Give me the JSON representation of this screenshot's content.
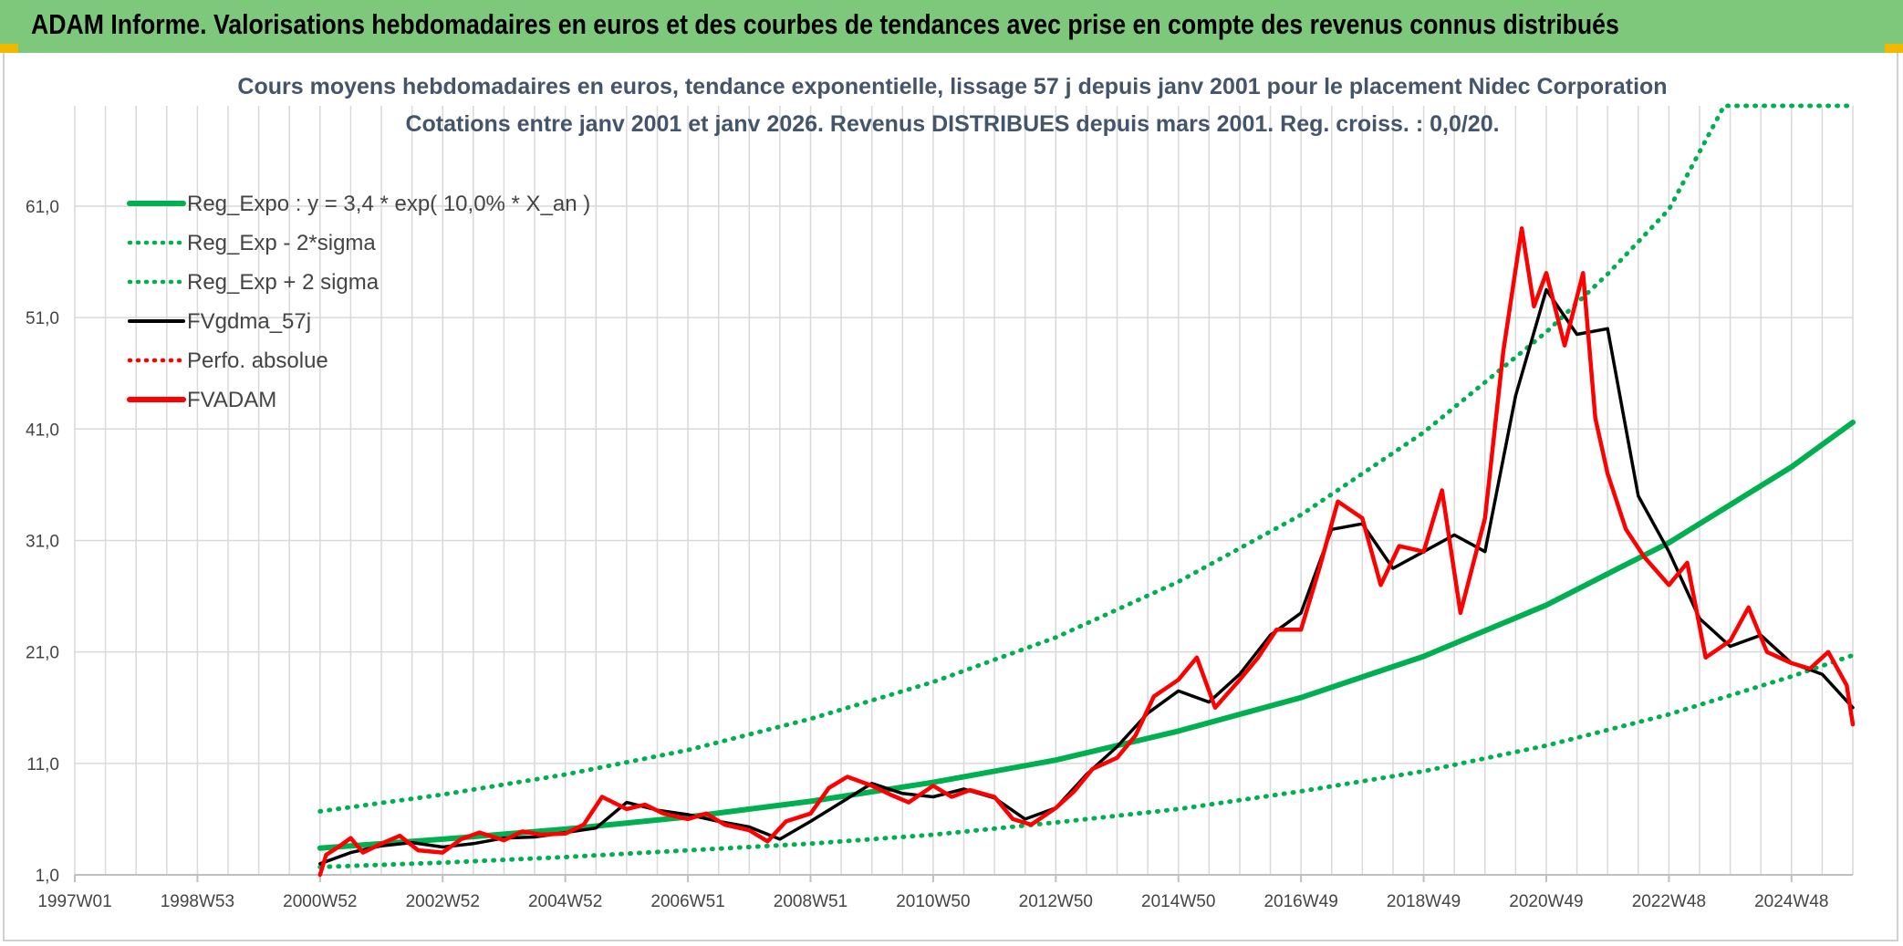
{
  "banner": {
    "title": "ADAM Informe. Valorisations hebdomadaires en euros et des courbes de tendances avec prise en compte des revenus connus distribués",
    "background": "#7dc87a",
    "accent": "#f2b800"
  },
  "chart_data": {
    "type": "line",
    "title_line1": "Cours moyens hebdomadaires en euros, tendance exponentielle, lissage 57 j depuis janv 2001 pour le placement Nidec Corporation",
    "title_line2": "Cotations entre janv 2001 et janv 2026. Revenus DISTRIBUES depuis mars 2001. Reg. croiss. : 0,0/20.",
    "x_tick_labels": [
      "1997W01",
      "1998W53",
      "2000W52",
      "2002W52",
      "2004W52",
      "2006W51",
      "2008W51",
      "2010W50",
      "2012W50",
      "2014W50",
      "2016W49",
      "2018W49",
      "2020W49",
      "2022W48",
      "2024W48"
    ],
    "x_tick_years": [
      1997.0,
      1999.0,
      2001.0,
      2003.0,
      2005.0,
      2007.0,
      2009.0,
      2011.0,
      2013.0,
      2015.0,
      2017.0,
      2019.0,
      2021.0,
      2023.0,
      2025.0
    ],
    "x_range": [
      1997.0,
      2026.0
    ],
    "y_tick_labels": [
      "1,0",
      "11,0",
      "21,0",
      "31,0",
      "41,0",
      "51,0",
      "61,0"
    ],
    "y_ticks": [
      1,
      11,
      21,
      31,
      41,
      51,
      61
    ],
    "ylim": [
      1,
      70
    ],
    "grid": true,
    "legend_position": "top-left",
    "legend": [
      {
        "label": "Reg_Expo : y = 3,4 * exp( 10,0% *  X_an )",
        "color": "#00b050",
        "style": "solid-thick"
      },
      {
        "label": "Reg_Exp - 2*sigma",
        "color": "#00b050",
        "style": "dotted"
      },
      {
        "label": "Reg_Exp + 2 sigma",
        "color": "#00b050",
        "style": "dotted"
      },
      {
        "label": "FVgdma_57j",
        "color": "#000000",
        "style": "solid"
      },
      {
        "label": "Perfo. absolue",
        "color": "#ff0000",
        "style": "dotted"
      },
      {
        "label": "FVADAM",
        "color": "#ff0000",
        "style": "solid-thick"
      }
    ],
    "series": [
      {
        "name": "Reg_Expo",
        "color": "#00b050",
        "x": [
          2001.0,
          2003.0,
          2005.0,
          2007.0,
          2009.0,
          2011.0,
          2013.0,
          2015.0,
          2017.0,
          2019.0,
          2021.0,
          2023.0,
          2025.0,
          2026.0
        ],
        "y": [
          3.4,
          4.2,
          5.1,
          6.2,
          7.6,
          9.3,
          11.3,
          13.9,
          16.9,
          20.6,
          25.2,
          30.8,
          37.6,
          41.6
        ]
      },
      {
        "name": "Reg_Exp - 2*sigma",
        "color": "#00b050",
        "x": [
          2001.0,
          2003.0,
          2005.0,
          2007.0,
          2009.0,
          2011.0,
          2013.0,
          2015.0,
          2017.0,
          2019.0,
          2021.0,
          2023.0,
          2025.0,
          2026.0
        ],
        "y": [
          1.7,
          2.1,
          2.6,
          3.2,
          3.8,
          4.6,
          5.7,
          6.9,
          8.5,
          10.3,
          12.6,
          15.4,
          18.8,
          20.7
        ]
      },
      {
        "name": "Reg_Exp + 2 sigma",
        "color": "#00b050",
        "x": [
          2001.0,
          2003.0,
          2005.0,
          2007.0,
          2009.0,
          2011.0,
          2013.0,
          2015.0,
          2017.0,
          2019.0,
          2021.0,
          2022.0,
          2023.0,
          2023.9,
          2026.0
        ],
        "y": [
          6.7,
          8.2,
          10.0,
          12.2,
          15.0,
          18.3,
          22.3,
          27.3,
          33.3,
          40.7,
          49.7,
          54.9,
          60.7,
          70.0,
          70.0
        ]
      },
      {
        "name": "FVgdma_57j",
        "color": "#000000",
        "x": [
          2001.0,
          2001.5,
          2002.0,
          2002.5,
          2003.0,
          2003.5,
          2004.0,
          2004.5,
          2005.0,
          2005.5,
          2006.0,
          2006.5,
          2007.0,
          2007.5,
          2008.0,
          2008.5,
          2009.0,
          2009.5,
          2010.0,
          2010.5,
          2011.0,
          2011.5,
          2012.0,
          2012.5,
          2013.0,
          2013.5,
          2014.0,
          2014.5,
          2015.0,
          2015.5,
          2016.0,
          2016.5,
          2017.0,
          2017.5,
          2018.0,
          2018.5,
          2019.0,
          2019.5,
          2020.0,
          2020.5,
          2021.0,
          2021.5,
          2022.0,
          2022.5,
          2023.0,
          2023.5,
          2024.0,
          2024.5,
          2025.0,
          2025.5,
          2026.0
        ],
        "y": [
          2.0,
          3.0,
          3.6,
          3.9,
          3.5,
          3.8,
          4.3,
          4.4,
          4.8,
          5.2,
          7.5,
          6.8,
          6.4,
          5.8,
          5.3,
          4.2,
          5.8,
          7.5,
          9.2,
          8.3,
          8.0,
          8.7,
          7.9,
          6.0,
          7.0,
          10.0,
          12.5,
          15.5,
          17.5,
          16.5,
          19.0,
          22.5,
          24.5,
          32.0,
          32.5,
          28.5,
          30.0,
          31.5,
          30.0,
          44.0,
          53.5,
          49.5,
          50.0,
          35.0,
          30.0,
          24.0,
          21.5,
          22.5,
          20.0,
          19.0,
          16.0
        ]
      },
      {
        "name": "FVADAM",
        "color": "#ff0000",
        "x": [
          2001.0,
          2001.1,
          2001.3,
          2001.5,
          2001.7,
          2002.0,
          2002.3,
          2002.6,
          2003.0,
          2003.3,
          2003.6,
          2004.0,
          2004.3,
          2004.6,
          2005.0,
          2005.3,
          2005.6,
          2006.0,
          2006.3,
          2006.6,
          2007.0,
          2007.3,
          2007.6,
          2008.0,
          2008.3,
          2008.6,
          2009.0,
          2009.3,
          2009.6,
          2010.0,
          2010.3,
          2010.6,
          2011.0,
          2011.3,
          2011.6,
          2012.0,
          2012.3,
          2012.6,
          2013.0,
          2013.3,
          2013.6,
          2014.0,
          2014.3,
          2014.6,
          2015.0,
          2015.3,
          2015.6,
          2016.0,
          2016.3,
          2016.6,
          2017.0,
          2017.3,
          2017.6,
          2018.0,
          2018.3,
          2018.6,
          2019.0,
          2019.3,
          2019.6,
          2020.0,
          2020.3,
          2020.6,
          2020.8,
          2021.0,
          2021.3,
          2021.6,
          2021.8,
          2022.0,
          2022.3,
          2022.6,
          2023.0,
          2023.3,
          2023.6,
          2024.0,
          2024.3,
          2024.6,
          2025.0,
          2025.3,
          2025.6,
          2025.9,
          2026.0
        ],
        "y": [
          1.0,
          2.8,
          3.5,
          4.3,
          3.0,
          3.8,
          4.5,
          3.2,
          3.0,
          4.2,
          4.8,
          4.1,
          4.9,
          4.6,
          4.7,
          5.5,
          8.0,
          6.9,
          7.3,
          6.5,
          6.0,
          6.5,
          5.5,
          5.0,
          4.0,
          5.8,
          6.5,
          8.8,
          9.8,
          9.0,
          8.2,
          7.5,
          9.0,
          8.0,
          8.6,
          8.0,
          6.0,
          5.5,
          7.0,
          8.5,
          10.5,
          11.5,
          13.5,
          17.0,
          18.5,
          20.5,
          16.0,
          18.5,
          20.5,
          23.0,
          23.0,
          28.5,
          34.5,
          33.0,
          27.0,
          30.5,
          30.0,
          35.5,
          24.5,
          33.0,
          48.0,
          59.0,
          52.0,
          55.0,
          48.5,
          55.0,
          42.0,
          37.0,
          32.0,
          29.5,
          27.0,
          29.0,
          20.5,
          22.0,
          25.0,
          21.0,
          20.0,
          19.5,
          21.0,
          18.0,
          14.5
        ]
      }
    ]
  }
}
